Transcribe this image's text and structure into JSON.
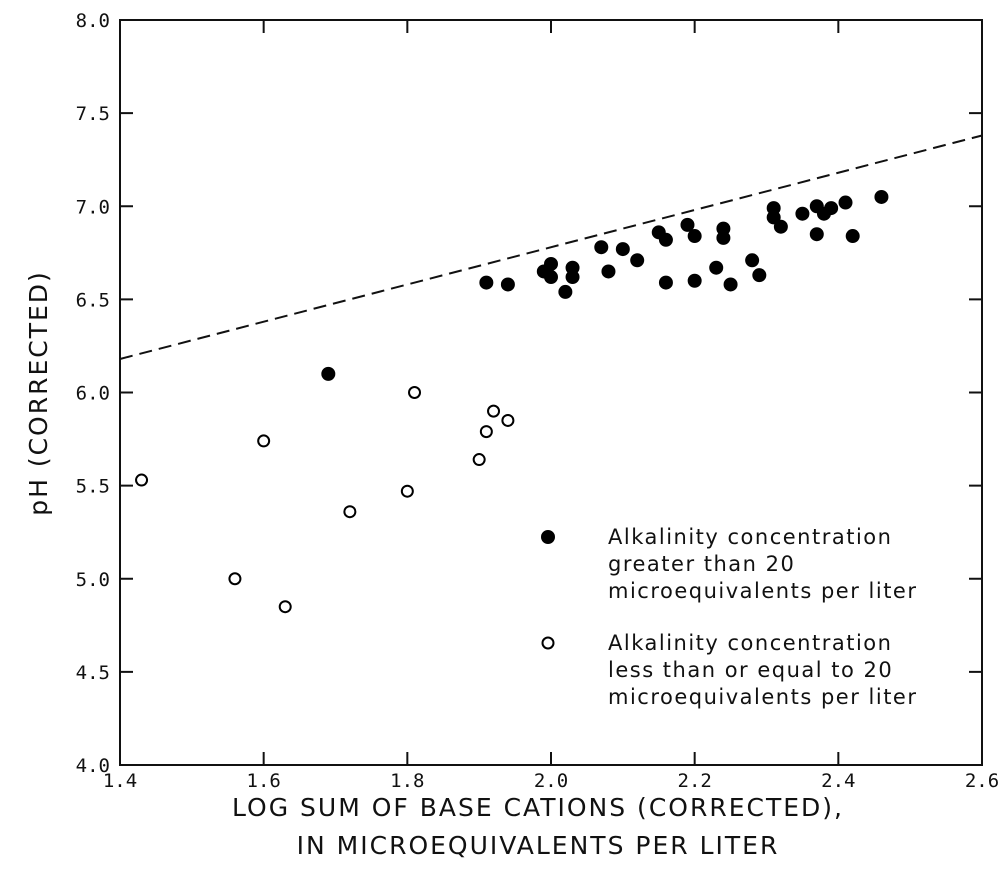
{
  "chart_data": {
    "type": "scatter",
    "title": "",
    "xlabel_lines": [
      "LOG SUM OF BASE CATIONS (CORRECTED),",
      "IN MICROEQUIVALENTS PER LITER"
    ],
    "ylabel": "pH (CORRECTED)",
    "xlim": [
      1.4,
      2.6
    ],
    "ylim": [
      4.0,
      8.0
    ],
    "x_ticks": [
      1.4,
      1.6,
      1.8,
      2.0,
      2.2,
      2.4,
      2.6
    ],
    "x_tick_labels": [
      "1.4",
      "1.6",
      "1.8",
      "2.0",
      "2.2",
      "2.4",
      "2.6"
    ],
    "y_ticks": [
      4.0,
      4.5,
      5.0,
      5.5,
      6.0,
      6.5,
      7.0,
      7.5,
      8.0
    ],
    "y_tick_labels": [
      "4.0",
      "4.5",
      "5.0",
      "5.5",
      "6.0",
      "6.5",
      "7.0",
      "7.5",
      "8.0"
    ],
    "grid": false,
    "legend_position": "bottom-right",
    "dashed_line": {
      "style": "dashed",
      "points": [
        [
          1.4,
          6.18
        ],
        [
          2.6,
          7.38
        ]
      ]
    },
    "series": [
      {
        "marker": "filled-circle",
        "color": "#000000",
        "legend_lines": [
          "Alkalinity concentration",
          "greater than 20",
          "microequivalents per liter"
        ],
        "points": [
          [
            1.69,
            6.1
          ],
          [
            1.91,
            6.59
          ],
          [
            1.94,
            6.58
          ],
          [
            1.99,
            6.65
          ],
          [
            2.0,
            6.69
          ],
          [
            2.0,
            6.62
          ],
          [
            2.02,
            6.54
          ],
          [
            2.03,
            6.62
          ],
          [
            2.03,
            6.67
          ],
          [
            2.07,
            6.78
          ],
          [
            2.08,
            6.65
          ],
          [
            2.1,
            6.77
          ],
          [
            2.12,
            6.71
          ],
          [
            2.15,
            6.86
          ],
          [
            2.16,
            6.82
          ],
          [
            2.16,
            6.59
          ],
          [
            2.19,
            6.9
          ],
          [
            2.2,
            6.84
          ],
          [
            2.2,
            6.6
          ],
          [
            2.23,
            6.67
          ],
          [
            2.24,
            6.88
          ],
          [
            2.24,
            6.83
          ],
          [
            2.25,
            6.58
          ],
          [
            2.28,
            6.71
          ],
          [
            2.29,
            6.63
          ],
          [
            2.31,
            6.99
          ],
          [
            2.31,
            6.94
          ],
          [
            2.32,
            6.89
          ],
          [
            2.35,
            6.96
          ],
          [
            2.37,
            7.0
          ],
          [
            2.37,
            6.85
          ],
          [
            2.38,
            6.96
          ],
          [
            2.39,
            6.99
          ],
          [
            2.41,
            7.02
          ],
          [
            2.42,
            6.84
          ],
          [
            2.46,
            7.05
          ]
        ]
      },
      {
        "marker": "open-circle",
        "color": "#000000",
        "legend_lines": [
          "Alkalinity concentration",
          "less than or equal to 20",
          "microequivalents per liter"
        ],
        "points": [
          [
            1.43,
            5.53
          ],
          [
            1.56,
            5.0
          ],
          [
            1.6,
            5.74
          ],
          [
            1.63,
            4.85
          ],
          [
            1.72,
            5.36
          ],
          [
            1.8,
            5.47
          ],
          [
            1.81,
            6.0
          ],
          [
            1.9,
            5.64
          ],
          [
            1.91,
            5.79
          ],
          [
            1.92,
            5.9
          ],
          [
            1.94,
            5.85
          ]
        ]
      }
    ]
  }
}
